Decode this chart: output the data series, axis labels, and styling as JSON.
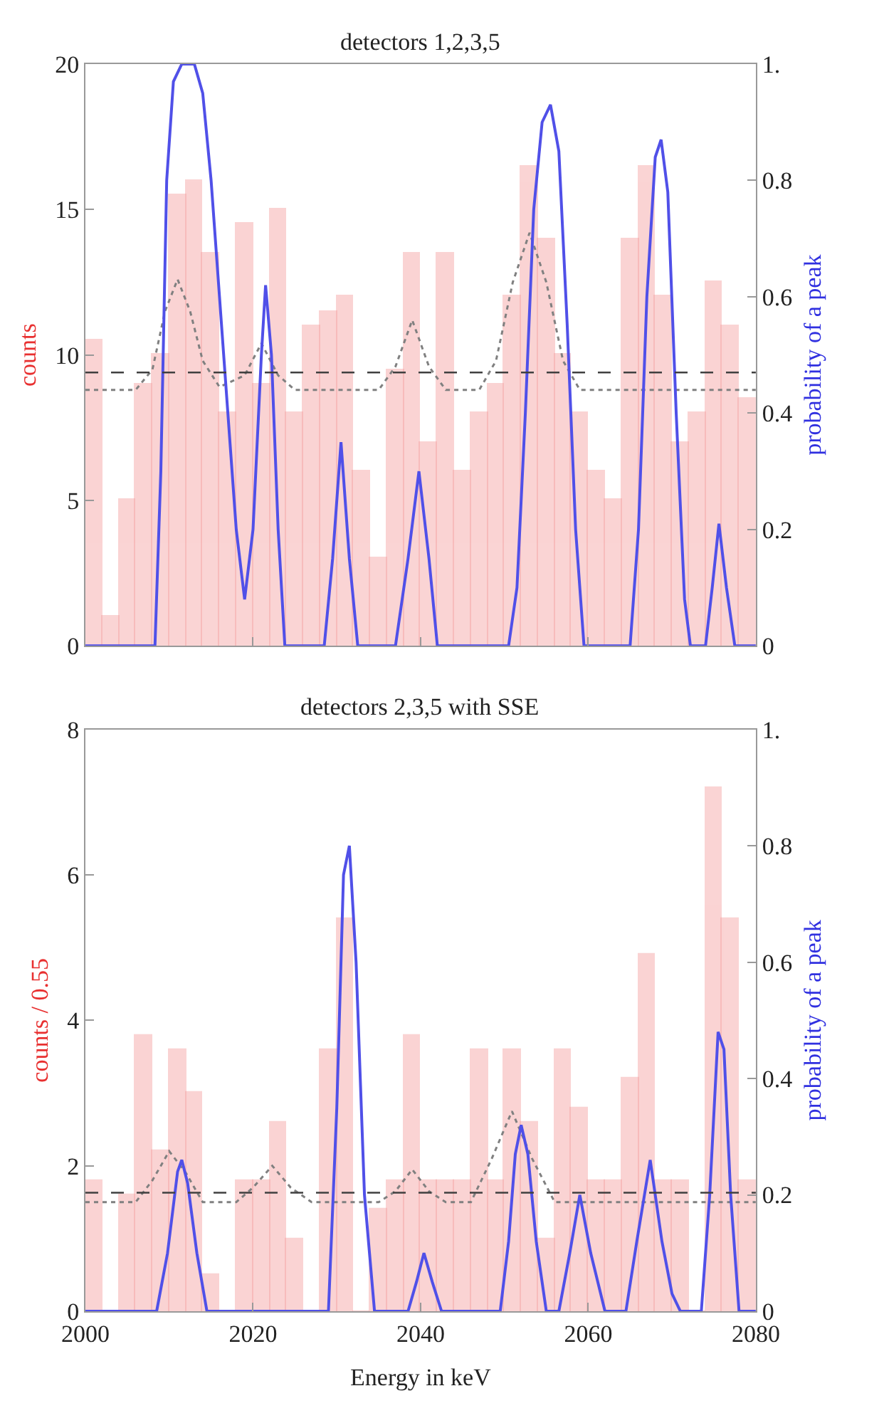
{
  "chart_data": [
    {
      "type": "histogram",
      "title": "detectors 1,2,3,5",
      "ylabel": "counts",
      "y2label": "probability of a peak",
      "color": "#f4a0a0",
      "tick_labels": "y",
      "bins": [
        2000,
        2002,
        2004,
        2006,
        2008,
        2010,
        2012,
        2014,
        2016,
        2018,
        2020,
        2022,
        2024,
        2026,
        2028,
        2030,
        2032,
        2034,
        2036,
        2038,
        2040,
        2042,
        2044,
        2046,
        2048,
        2050,
        2052,
        2054,
        2056,
        2058,
        2060,
        2062,
        2064,
        2066,
        2068,
        2070,
        2072,
        2074,
        2076,
        2078,
        2080
      ],
      "values": [
        10.5,
        1,
        5,
        9,
        10,
        15.5,
        16,
        13.5,
        8,
        14.5,
        9,
        15,
        8,
        11,
        11.5,
        12,
        6,
        3,
        9.5,
        13.5,
        7,
        13.5,
        6,
        8,
        9,
        12,
        16.5,
        14,
        10,
        8,
        6,
        5,
        14,
        16.5,
        12,
        7,
        8,
        12.5,
        11,
        8.5
      ],
      "series": [
        {
          "type": "line",
          "axis": "y2",
          "color": "#5050e8",
          "x": [
            2000,
            2008.3,
            2009,
            2009.7,
            2010.5,
            2011.5,
            2013,
            2014,
            2015,
            2016,
            2017,
            2018,
            2019,
            2020,
            2021,
            2021.5,
            2022.2,
            2023,
            2023.8,
            2028.5,
            2029.5,
            2030.5,
            2031.5,
            2032.5,
            2037,
            2038.5,
            2039.8,
            2041,
            2042,
            2050.5,
            2051.5,
            2052.5,
            2053.5,
            2054.5,
            2055.5,
            2056.5,
            2057.5,
            2058.5,
            2059.5,
            2065,
            2066,
            2067,
            2068,
            2068.7,
            2069.5,
            2070.5,
            2071.5,
            2072.2,
            2074,
            2074.8,
            2075.6,
            2076.5,
            2077.5,
            2080
          ],
          "values": [
            0,
            0,
            0.3,
            0.8,
            0.97,
            1.0,
            1.0,
            0.95,
            0.8,
            0.6,
            0.4,
            0.2,
            0.08,
            0.2,
            0.5,
            0.62,
            0.5,
            0.2,
            0,
            0,
            0.15,
            0.35,
            0.15,
            0,
            0,
            0.15,
            0.3,
            0.15,
            0,
            0,
            0.1,
            0.4,
            0.75,
            0.9,
            0.93,
            0.85,
            0.55,
            0.2,
            0,
            0,
            0.2,
            0.6,
            0.84,
            0.87,
            0.78,
            0.4,
            0.08,
            0,
            0,
            0.1,
            0.21,
            0.1,
            0,
            0
          ]
        },
        {
          "type": "line",
          "line_style": "dotted",
          "color": "#808080",
          "x": [
            2000,
            2006,
            2008,
            2009.5,
            2011,
            2012.5,
            2014,
            2016,
            2019,
            2021,
            2023,
            2025,
            2035,
            2037,
            2039,
            2041,
            2043,
            2047,
            2049,
            2051,
            2053,
            2055,
            2057,
            2059,
            2080
          ],
          "values": [
            8.8,
            8.8,
            9.5,
            11.5,
            12.6,
            11.5,
            9.8,
            8.9,
            9.3,
            10.4,
            9.3,
            8.8,
            8.8,
            9.6,
            11.2,
            9.6,
            8.8,
            8.8,
            9.8,
            12.5,
            14.2,
            12.5,
            9.8,
            8.8,
            8.8
          ]
        }
      ],
      "ref_lines": [
        {
          "axis": "y",
          "value": 9.4,
          "color": "#404040",
          "line_style": "dashed"
        }
      ],
      "xlim": [
        2000,
        2080
      ],
      "xticks": [
        2000,
        2020,
        2040,
        2060,
        2080
      ],
      "ylim": [
        0,
        20
      ],
      "yticks": [
        0,
        5,
        10,
        15,
        20
      ],
      "y2lim": [
        0,
        1
      ],
      "y2ticks": [
        0,
        0.2,
        0.4,
        0.6,
        0.8,
        {
          "value": 1,
          "label": "1."
        }
      ]
    },
    {
      "type": "histogram",
      "title": "detectors 2,3,5 with SSE",
      "xlabel": "Energy in keV",
      "ylabel": "counts / 0.55",
      "y2label": "probability of a peak",
      "color": "#f4a0a0",
      "bins": [
        2000,
        2002,
        2004,
        2006,
        2008,
        2010,
        2012,
        2014,
        2016,
        2018,
        2020,
        2022,
        2024,
        2026,
        2028,
        2030,
        2032,
        2034,
        2036,
        2038,
        2040,
        2042,
        2044,
        2046,
        2048,
        2050,
        2052,
        2054,
        2056,
        2058,
        2060,
        2062,
        2064,
        2066,
        2068,
        2070,
        2072,
        2074,
        2076,
        2078,
        2080
      ],
      "values": [
        1.8,
        0,
        1.6,
        3.8,
        2.2,
        3.6,
        3.0,
        0.5,
        0,
        1.8,
        1.8,
        2.6,
        1.0,
        0,
        3.6,
        5.4,
        0,
        1.4,
        1.8,
        3.8,
        1.8,
        1.8,
        1.8,
        3.6,
        1.8,
        3.6,
        2.6,
        1.0,
        3.6,
        2.8,
        1.8,
        1.8,
        3.2,
        4.9,
        1.8,
        1.8,
        0,
        7.2,
        5.4,
        1.8
      ],
      "series": [
        {
          "type": "line",
          "axis": "y2",
          "color": "#5050e8",
          "x": [
            2000,
            2008.5,
            2009.8,
            2011,
            2011.5,
            2012.2,
            2013.3,
            2014.5,
            2029,
            2030,
            2030.8,
            2031.5,
            2032.3,
            2033.3,
            2034.5,
            2038.5,
            2039.5,
            2040.4,
            2041.4,
            2042.5,
            2049.5,
            2050.5,
            2051.3,
            2052,
            2052.8,
            2053.8,
            2055,
            2056.5,
            2057.8,
            2059,
            2060.3,
            2062,
            2064.5,
            2065.8,
            2067.4,
            2068.8,
            2070,
            2071,
            2073.5,
            2074.5,
            2075.5,
            2076.2,
            2077,
            2078,
            2080
          ],
          "values": [
            0,
            0,
            0.1,
            0.24,
            0.26,
            0.22,
            0.1,
            0,
            0,
            0.35,
            0.75,
            0.8,
            0.6,
            0.2,
            0,
            0,
            0.05,
            0.1,
            0.05,
            0,
            0,
            0.12,
            0.27,
            0.32,
            0.27,
            0.12,
            0,
            0,
            0.1,
            0.2,
            0.1,
            0,
            0,
            0.12,
            0.26,
            0.12,
            0.03,
            0,
            0,
            0.2,
            0.48,
            0.45,
            0.2,
            0,
            0
          ]
        },
        {
          "type": "line",
          "line_style": "dotted",
          "color": "#808080",
          "x": [
            2000,
            2006,
            2008,
            2010,
            2012,
            2014,
            2018,
            2020,
            2022.3,
            2024.5,
            2027,
            2035,
            2037,
            2039,
            2041,
            2043,
            2046,
            2048.5,
            2050.9,
            2053.3,
            2056,
            2080
          ],
          "values": [
            1.5,
            1.5,
            1.8,
            2.2,
            1.9,
            1.5,
            1.5,
            1.7,
            2.0,
            1.7,
            1.5,
            1.5,
            1.65,
            1.95,
            1.65,
            1.5,
            1.5,
            2.1,
            2.75,
            2.1,
            1.5,
            1.5
          ]
        }
      ],
      "ref_lines": [
        {
          "axis": "y",
          "value": 1.63,
          "color": "#404040",
          "line_style": "dashed"
        }
      ],
      "xlim": [
        2000,
        2080
      ],
      "xticks": [
        2000,
        2020,
        2040,
        2060,
        2080
      ],
      "ylim": [
        0,
        8
      ],
      "yticks": [
        0,
        2,
        4,
        6,
        8
      ],
      "y2lim": [
        0,
        1
      ],
      "y2ticks": [
        0,
        0.2,
        0.4,
        0.6,
        0.8,
        {
          "value": 1,
          "label": "1."
        }
      ]
    }
  ]
}
